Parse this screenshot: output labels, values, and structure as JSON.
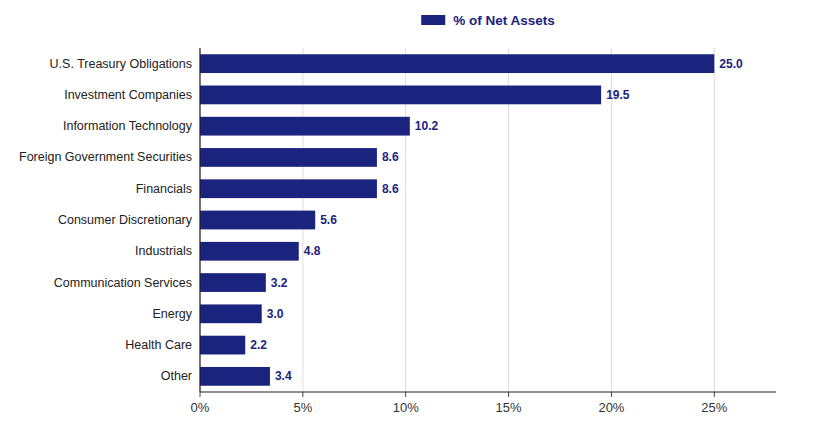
{
  "chart_data": {
    "type": "bar",
    "orientation": "horizontal",
    "categories": [
      "Other",
      "Health Care",
      "Energy",
      "Communication Services",
      "Industrials",
      "Consumer Discretionary",
      "Financials",
      "Foreign Government Securities",
      "Information Technology",
      "Investment Companies",
      "U.S. Treasury Obligations"
    ],
    "series": [
      {
        "name": "% of Net Assets",
        "color": "#1a237e",
        "values": [
          3.4,
          2.2,
          3.0,
          3.2,
          4.8,
          5.6,
          8.6,
          8.6,
          10.2,
          19.5,
          25.0
        ],
        "value_labels": [
          "3.4",
          "2.2",
          "3.0",
          "3.2",
          "4.8",
          "5.6",
          "8.6",
          "8.6",
          "10.2",
          "19.5",
          "25.0"
        ]
      }
    ],
    "xlim": [
      0,
      28
    ],
    "xticks": [
      {
        "value": 0,
        "label": "0%"
      },
      {
        "value": 5,
        "label": "5%"
      },
      {
        "value": 10,
        "label": "10%"
      },
      {
        "value": 15,
        "label": "15%"
      },
      {
        "value": 20,
        "label": "20%"
      },
      {
        "value": 25,
        "label": "25%"
      }
    ],
    "grid": true,
    "legend": "top",
    "data_labels": true
  }
}
